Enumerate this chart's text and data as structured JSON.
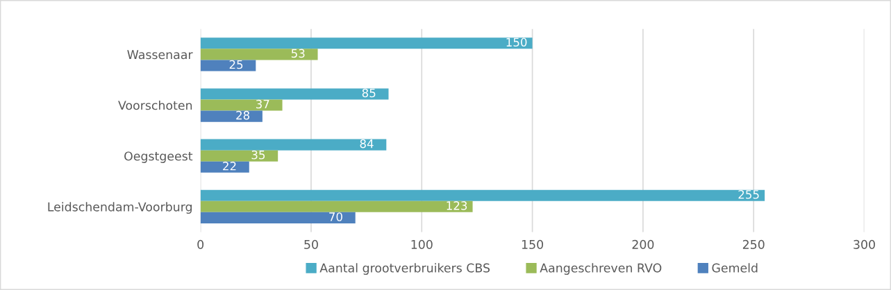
{
  "chart_data": {
    "type": "bar",
    "orientation": "horizontal",
    "categories": [
      "Wassenaar",
      "Voorschoten",
      "Oegstgeest",
      "Leidschendam-Voorburg"
    ],
    "series": [
      {
        "name": "Aantal grootverbruikers CBS",
        "color": "#4bacc6",
        "values": [
          150,
          85,
          84,
          255
        ]
      },
      {
        "name": "Aangeschreven RVO",
        "color": "#9bbb59",
        "values": [
          53,
          37,
          35,
          123
        ]
      },
      {
        "name": "Gemeld",
        "color": "#4f81bd",
        "values": [
          25,
          28,
          22,
          70
        ]
      }
    ],
    "xlim": [
      0,
      300
    ],
    "xticks": [
      0,
      50,
      100,
      150,
      200,
      250,
      300
    ],
    "grid": "x",
    "legend": "bottom",
    "data_labels": true
  }
}
